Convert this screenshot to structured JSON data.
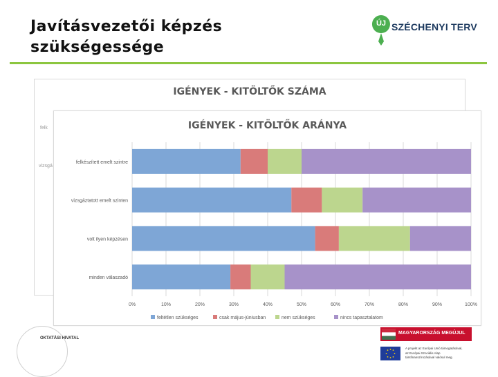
{
  "slide": {
    "title_line1": "Javításvezetői képzés",
    "title_line2": "szükségessége",
    "logo_badge": "ÚJ",
    "logo_text": "SZÉCHENYI TERV",
    "footer_left": "OKTATÁSI HIVATAL",
    "footer_right_badge": "MAGYARORSZÁG MEGÚJUL",
    "footer_eu_lines": [
      "A projekt az Európai Unió támogatásával,",
      "az Európai Szociális Alap",
      "társfinanszírozásával valósul meg."
    ]
  },
  "back_chart": {
    "title": "IGÉNYEK - KITÖLTŐK SZÁMA",
    "partial_labels": [
      "felk",
      "vizsgá"
    ]
  },
  "colors": {
    "blue": "#7ea6d6",
    "red": "#d97b7a",
    "green": "#bcd68e",
    "purple": "#a792c9",
    "accent_green": "#8cc63f",
    "logo_green": "#4caf50",
    "logo_navy": "#1d3a5f"
  },
  "chart_data": {
    "type": "bar",
    "orientation": "horizontal",
    "stacked": "percent",
    "title": "IGÉNYEK - KITÖLTŐK ARÁNYA",
    "categories": [
      "felkészített emelt szintre",
      "vizsgáztatott emelt szinten",
      "volt ilyen képzésen",
      "minden válaszadó"
    ],
    "series": [
      {
        "name": "feltétlen szükséges",
        "color": "#7ea6d6",
        "values": [
          32,
          47,
          54,
          29
        ]
      },
      {
        "name": "csak május-júniusban",
        "color": "#d97b7a",
        "values": [
          8,
          9,
          7,
          6
        ]
      },
      {
        "name": "nem szükséges",
        "color": "#bcd68e",
        "values": [
          10,
          12,
          21,
          10
        ]
      },
      {
        "name": "nincs tapasztalatom",
        "color": "#a792c9",
        "values": [
          50,
          32,
          18,
          55
        ]
      }
    ],
    "xticks": [
      "0%",
      "10%",
      "20%",
      "30%",
      "40%",
      "50%",
      "60%",
      "70%",
      "80%",
      "90%",
      "100%"
    ],
    "xlim": [
      0,
      100
    ],
    "grid": true,
    "legend_position": "bottom"
  }
}
